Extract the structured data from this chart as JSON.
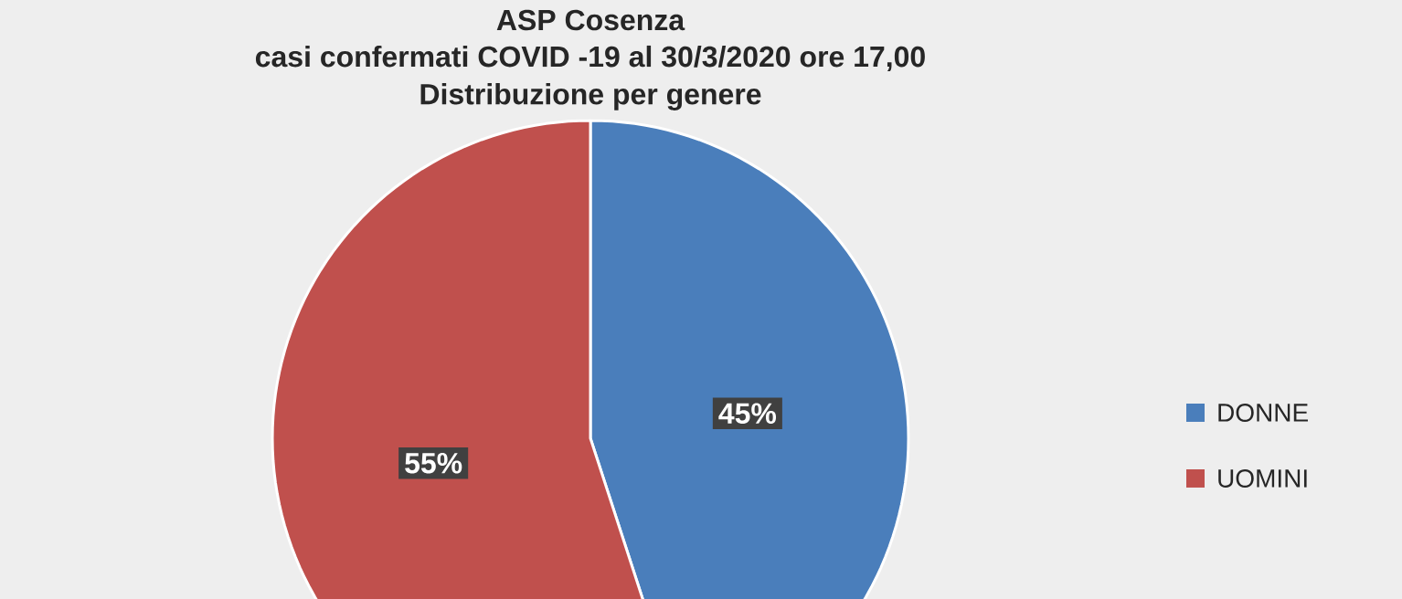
{
  "chart_data": {
    "type": "pie",
    "title": "ASP Cosenza",
    "subtitle": "casi confermati COVID -19 al 30/3/2020 ore 17,00",
    "annotations": [
      "Distribuzione per genere"
    ],
    "categories": [
      "DONNE",
      "UOMINI"
    ],
    "values": [
      45,
      55
    ],
    "colors": [
      "#4a7ebb",
      "#c0504d"
    ],
    "value_labels": [
      "45%",
      "55%"
    ],
    "legend": "right"
  }
}
